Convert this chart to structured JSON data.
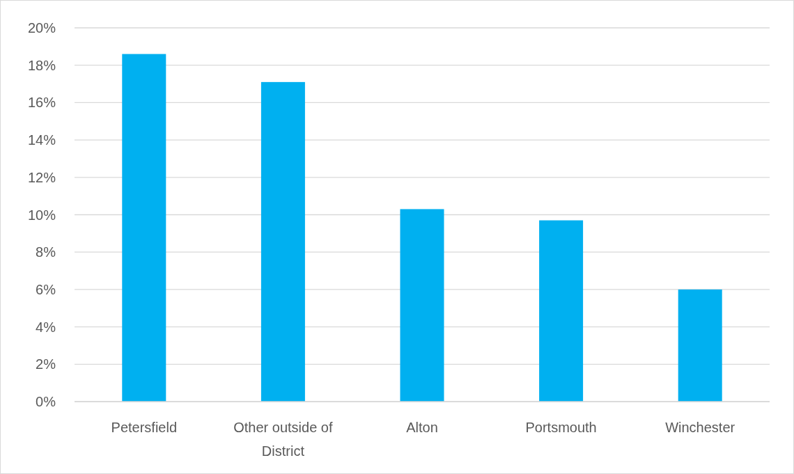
{
  "chart_data": {
    "type": "bar",
    "categories": [
      "Petersfield",
      "Other outside of District",
      "Alton",
      "Portsmouth",
      "Winchester"
    ],
    "values": [
      18.6,
      17.1,
      10.3,
      9.7,
      6.0
    ],
    "color": "#00b0f0",
    "ylim": [
      0,
      20
    ],
    "yticks": [
      {
        "value": 0,
        "label": "0%"
      },
      {
        "value": 2,
        "label": "2%"
      },
      {
        "value": 4,
        "label": "4%"
      },
      {
        "value": 6,
        "label": "6%"
      },
      {
        "value": 8,
        "label": "8%"
      },
      {
        "value": 10,
        "label": "10%"
      },
      {
        "value": 12,
        "label": "12%"
      },
      {
        "value": 14,
        "label": "14%"
      },
      {
        "value": 16,
        "label": "16%"
      },
      {
        "value": 18,
        "label": "18%"
      },
      {
        "value": 20,
        "label": "20%"
      }
    ],
    "grid": "y"
  }
}
